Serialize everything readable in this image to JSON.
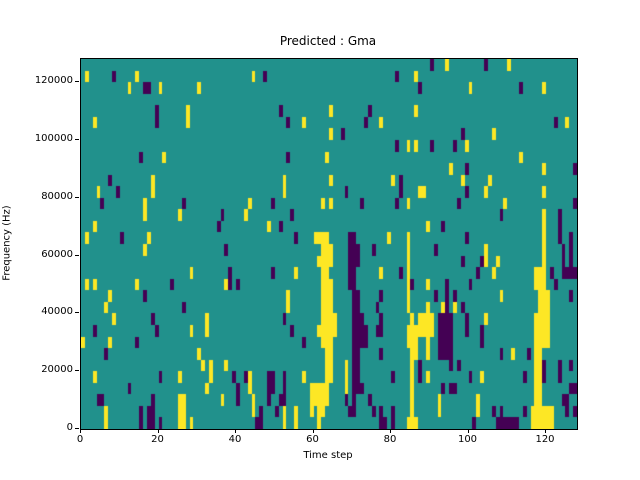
{
  "figure": {
    "title": "Predicted : Gma",
    "xlabel": "Time step",
    "ylabel": "Frequency (Hz)",
    "background": "#ffffff"
  },
  "chart_data": {
    "type": "heatmap",
    "title": "Predicted : Gma",
    "xlabel": "Time step",
    "ylabel": "Frequency (Hz)",
    "x_range": [
      0,
      128
    ],
    "y_range": [
      0,
      128000
    ],
    "x_ticks": [
      0,
      20,
      40,
      60,
      80,
      100,
      120
    ],
    "y_ticks": [
      0,
      20000,
      40000,
      60000,
      80000,
      100000,
      120000
    ],
    "n_cols": 128,
    "n_rows": 32,
    "grid": false,
    "legend": null,
    "colormap": {
      "0": "#440154",
      "1": "#21918c",
      "2": "#fde725"
    },
    "value_meaning": "0=dark-purple, 1=teal background, 2=yellow; viridis discrete",
    "cells_encoding": "each entry: [row_from_top (0=124000-128000Hz bin), yellow_cols[], purple_cols[]]; all other cells teal (value 1); col 0 = time step 0",
    "cells": [
      [
        0,
        [
          94,
          110
        ],
        [
          90,
          104
        ]
      ],
      [
        1,
        [
          1,
          14,
          44,
          86
        ],
        [
          8,
          47,
          81
        ]
      ],
      [
        2,
        [
          12,
          20,
          30,
          100,
          119
        ],
        [
          16,
          17,
          87,
          113
        ]
      ],
      [
        3,
        [],
        []
      ],
      [
        4,
        [
          27,
          64,
          86
        ],
        [
          19,
          51,
          74
        ]
      ],
      [
        5,
        [
          3,
          27,
          57,
          77,
          125
        ],
        [
          19,
          53,
          73,
          122
        ]
      ],
      [
        6,
        [
          64,
          106
        ],
        [
          67,
          98
        ]
      ],
      [
        7,
        [
          84,
          86,
          99
        ],
        [
          81,
          90,
          96
        ]
      ],
      [
        8,
        [
          21,
          63,
          113
        ],
        [
          15,
          53
        ]
      ],
      [
        9,
        [
          95,
          119
        ],
        [
          99,
          127
        ]
      ],
      [
        10,
        [
          18,
          52,
          64,
          80,
          98,
          105
        ],
        [
          7,
          82
        ]
      ],
      [
        11,
        [
          4,
          18,
          52,
          87,
          88,
          104,
          119
        ],
        [
          9,
          68,
          82,
          99
        ]
      ],
      [
        12,
        [
          16,
          43,
          62,
          64,
          84,
          109
        ],
        [
          5,
          26,
          49,
          72,
          81,
          97,
          127
        ]
      ],
      [
        13,
        [
          16,
          25,
          42,
          119
        ],
        [
          36,
          54,
          108,
          123
        ]
      ],
      [
        14,
        [
          3,
          48,
          89,
          119
        ],
        [
          35,
          51,
          93,
          123
        ]
      ],
      [
        15,
        [
          1,
          17,
          60,
          61,
          62,
          63,
          79,
          84,
          119
        ],
        [
          10,
          55,
          69,
          70,
          99,
          123,
          126
        ]
      ],
      [
        16,
        [
          16,
          62,
          63,
          64,
          84,
          104,
          119
        ],
        [
          37,
          69,
          70,
          71,
          75,
          91,
          124,
          126
        ]
      ],
      [
        17,
        [
          61,
          62,
          63,
          64,
          84,
          104,
          107,
          119
        ],
        [
          69,
          70,
          71,
          98,
          103,
          124,
          126
        ]
      ],
      [
        18,
        [
          28,
          55,
          62,
          63,
          77,
          84,
          106,
          117,
          118,
          119
        ],
        [
          38,
          49,
          69,
          70,
          82,
          102,
          121,
          124,
          125,
          126,
          127
        ]
      ],
      [
        19,
        [
          1,
          3,
          14,
          37,
          62,
          63,
          64,
          84,
          89,
          117,
          118,
          119
        ],
        [
          23,
          38,
          40,
          69,
          70,
          85,
          94,
          100,
          122
        ]
      ],
      [
        20,
        [
          7,
          53,
          62,
          63,
          64,
          84,
          108,
          118,
          119,
          120
        ],
        [
          16,
          70,
          71,
          77,
          91,
          94,
          96,
          126
        ]
      ],
      [
        21,
        [
          6,
          53,
          62,
          63,
          64,
          84,
          89,
          93,
          96,
          118,
          119,
          120
        ],
        [
          26,
          70,
          71,
          76,
          94,
          98
        ]
      ],
      [
        22,
        [
          8,
          32,
          62,
          63,
          64,
          65,
          85,
          87,
          88,
          89,
          90,
          104,
          117,
          118,
          119,
          120
        ],
        [
          18,
          52,
          70,
          71,
          72,
          77,
          92,
          93,
          94,
          95,
          99
        ]
      ],
      [
        23,
        [
          28,
          32,
          61,
          62,
          63,
          64,
          65,
          84,
          85,
          86,
          87,
          88,
          89,
          90,
          117,
          118,
          119,
          120
        ],
        [
          3,
          19,
          54,
          70,
          71,
          72,
          73,
          76,
          77,
          92,
          93,
          94,
          95,
          99,
          103
        ]
      ],
      [
        24,
        [
          0,
          7,
          62,
          63,
          64,
          84,
          85,
          86,
          89,
          117,
          118,
          119,
          120
        ],
        [
          14,
          57,
          70,
          71,
          72,
          73,
          92,
          93,
          94,
          95,
          103
        ]
      ],
      [
        25,
        [
          30,
          63,
          64,
          85,
          86,
          89,
          111,
          117,
          118
        ],
        [
          6,
          70,
          71,
          77,
          92,
          93,
          94,
          95,
          108,
          115
        ]
      ],
      [
        26,
        [
          31,
          33,
          37,
          63,
          64,
          68,
          85,
          117,
          118
        ],
        [
          70,
          71,
          87,
          95,
          97,
          119,
          123,
          126
        ]
      ],
      [
        27,
        [
          3,
          25,
          33,
          43,
          57,
          63,
          64,
          68,
          85,
          89,
          103,
          117,
          118
        ],
        [
          20,
          39,
          42,
          48,
          49,
          52,
          70,
          71,
          80,
          87,
          100,
          114,
          119,
          123
        ]
      ],
      [
        28,
        [
          32,
          43,
          59,
          60,
          61,
          62,
          63,
          68,
          85,
          117,
          118
        ],
        [
          12,
          40,
          48,
          49,
          52,
          70,
          71,
          72,
          93,
          95,
          96,
          126,
          127
        ]
      ],
      [
        29,
        [
          25,
          26,
          36,
          44,
          59,
          60,
          61,
          62,
          63,
          85,
          92,
          102,
          117,
          118
        ],
        [
          4,
          5,
          18,
          40,
          48,
          51,
          52,
          68,
          70,
          74,
          124,
          125
        ]
      ],
      [
        30,
        [
          6,
          25,
          26,
          44,
          52,
          55,
          59,
          61,
          62,
          85,
          92,
          102,
          116,
          117,
          118,
          119,
          120,
          121
        ],
        [
          15,
          17,
          18,
          46,
          50,
          69,
          70,
          75,
          77,
          80,
          106,
          108,
          114,
          125,
          127
        ]
      ],
      [
        31,
        [
          6,
          25,
          26,
          28,
          52,
          55,
          61,
          84,
          85,
          86,
          116,
          117,
          118,
          119,
          120,
          121
        ],
        [
          15,
          17,
          18,
          20,
          45,
          46,
          77,
          78,
          80,
          101,
          107,
          108,
          109,
          110,
          111,
          112
        ]
      ]
    ]
  }
}
